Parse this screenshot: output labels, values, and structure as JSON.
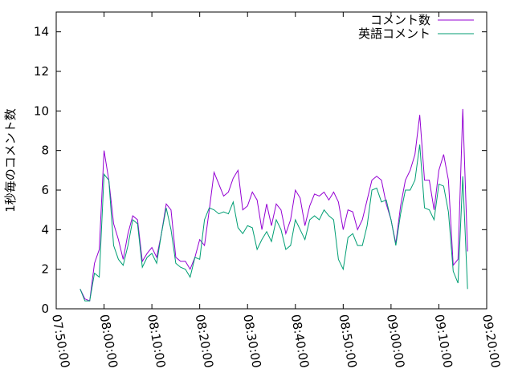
{
  "chart_data": {
    "type": "line",
    "ylabel": "1秒毎のコメント数",
    "x": [
      "07:55:00",
      "07:56:00",
      "07:57:00",
      "07:58:00",
      "07:59:00",
      "08:00:00",
      "08:01:00",
      "08:02:00",
      "08:03:00",
      "08:04:00",
      "08:05:00",
      "08:06:00",
      "08:07:00",
      "08:08:00",
      "08:09:00",
      "08:10:00",
      "08:11:00",
      "08:12:00",
      "08:13:00",
      "08:14:00",
      "08:15:00",
      "08:16:00",
      "08:17:00",
      "08:18:00",
      "08:19:00",
      "08:20:00",
      "08:21:00",
      "08:22:00",
      "08:23:00",
      "08:24:00",
      "08:25:00",
      "08:26:00",
      "08:27:00",
      "08:28:00",
      "08:29:00",
      "08:30:00",
      "08:31:00",
      "08:32:00",
      "08:33:00",
      "08:34:00",
      "08:35:00",
      "08:36:00",
      "08:37:00",
      "08:38:00",
      "08:39:00",
      "08:40:00",
      "08:41:00",
      "08:42:00",
      "08:43:00",
      "08:44:00",
      "08:45:00",
      "08:46:00",
      "08:47:00",
      "08:48:00",
      "08:49:00",
      "08:50:00",
      "08:51:00",
      "08:52:00",
      "08:53:00",
      "08:54:00",
      "08:55:00",
      "08:56:00",
      "08:57:00",
      "08:58:00",
      "08:59:00",
      "09:00:00",
      "09:01:00",
      "09:02:00",
      "09:03:00",
      "09:04:00",
      "09:05:00",
      "09:06:00",
      "09:07:00",
      "09:08:00",
      "09:09:00",
      "09:10:00",
      "09:11:00",
      "09:12:00",
      "09:13:00",
      "09:14:00",
      "09:15:00",
      "09:16:00"
    ],
    "series": [
      {
        "name": "コメント数",
        "color": "#9400d3",
        "values": [
          1.0,
          0.5,
          0.4,
          2.3,
          3.0,
          8.0,
          6.5,
          4.3,
          3.5,
          2.5,
          3.8,
          4.7,
          4.5,
          2.4,
          2.8,
          3.1,
          2.6,
          3.8,
          5.3,
          5.0,
          2.6,
          2.4,
          2.4,
          2.0,
          2.6,
          3.5,
          3.2,
          5.0,
          6.9,
          6.3,
          5.7,
          5.9,
          6.6,
          7.0,
          5.0,
          5.2,
          5.9,
          5.5,
          4.0,
          5.3,
          4.2,
          5.3,
          5.0,
          3.8,
          4.5,
          6.0,
          5.6,
          4.2,
          5.2,
          5.8,
          5.7,
          5.9,
          5.5,
          5.9,
          5.4,
          4.0,
          5.0,
          4.9,
          4.0,
          4.5,
          5.5,
          6.5,
          6.7,
          6.5,
          5.3,
          4.5,
          3.3,
          5.2,
          6.5,
          7.0,
          7.8,
          9.8,
          6.5,
          6.5,
          5.0,
          7.0,
          7.8,
          6.5,
          2.2,
          2.5,
          10.1,
          2.9
        ]
      },
      {
        "name": "英語コメント",
        "color": "#009e73",
        "values": [
          1.0,
          0.4,
          0.4,
          1.8,
          1.6,
          6.8,
          6.5,
          3.2,
          2.5,
          2.2,
          3.2,
          4.5,
          4.3,
          2.1,
          2.6,
          2.8,
          2.3,
          3.8,
          5.1,
          4.0,
          2.3,
          2.1,
          2.0,
          1.6,
          2.6,
          2.5,
          4.5,
          5.1,
          5.0,
          4.8,
          4.9,
          4.8,
          5.4,
          4.1,
          3.8,
          4.2,
          4.1,
          3.0,
          3.5,
          3.9,
          3.4,
          4.5,
          4.0,
          3.0,
          3.2,
          4.5,
          4.0,
          3.5,
          4.5,
          4.7,
          4.5,
          5.0,
          4.7,
          4.5,
          2.5,
          2.0,
          3.6,
          3.8,
          3.2,
          3.2,
          4.2,
          6.0,
          6.1,
          5.4,
          5.5,
          4.5,
          3.2,
          4.8,
          6.0,
          6.0,
          6.5,
          8.3,
          5.1,
          5.0,
          4.5,
          6.3,
          6.2,
          4.9,
          1.9,
          1.3,
          6.7,
          1.0
        ]
      }
    ],
    "xlim": [
      "07:50:00",
      "09:20:00"
    ],
    "xticks": [
      "07:50:00",
      "08:00:00",
      "08:10:00",
      "08:20:00",
      "08:30:00",
      "08:40:00",
      "08:50:00",
      "09:00:00",
      "09:10:00",
      "09:20:00"
    ],
    "ylim": [
      0,
      15
    ],
    "yticks": [
      0,
      2,
      4,
      6,
      8,
      10,
      12,
      14
    ],
    "grid": false,
    "legend": "top-right"
  }
}
